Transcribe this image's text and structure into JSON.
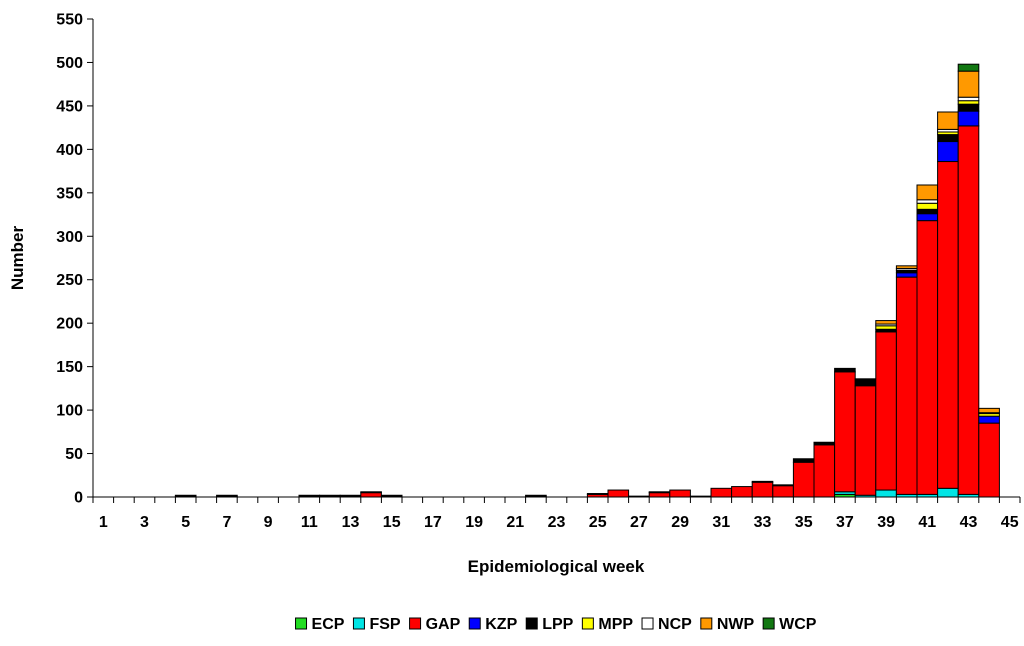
{
  "chart_data": {
    "type": "bar",
    "stacked": true,
    "xlabel": "Epidemiological week",
    "ylabel": "Number",
    "ylim": [
      0,
      550
    ],
    "yticks": [
      0,
      50,
      100,
      150,
      200,
      250,
      300,
      350,
      400,
      450,
      500,
      550
    ],
    "x_tick_labels": [
      "1",
      "3",
      "5",
      "7",
      "9",
      "11",
      "13",
      "15",
      "17",
      "19",
      "21",
      "23",
      "25",
      "27",
      "29",
      "31",
      "33",
      "35",
      "37",
      "39",
      "41",
      "43",
      "45"
    ],
    "grid": false,
    "legend_position": "bottom",
    "weeks": [
      1,
      2,
      3,
      4,
      5,
      6,
      7,
      8,
      9,
      10,
      11,
      12,
      13,
      14,
      15,
      16,
      17,
      18,
      19,
      20,
      21,
      22,
      23,
      24,
      25,
      26,
      27,
      28,
      29,
      30,
      31,
      32,
      33,
      34,
      35,
      36,
      37,
      38,
      39,
      40,
      41,
      42,
      43,
      44
    ],
    "series": [
      {
        "name": "ECP",
        "color": "#22dd22",
        "values": [
          0,
          0,
          0,
          0,
          0,
          0,
          0,
          0,
          0,
          0,
          0,
          0,
          0,
          0,
          0,
          0,
          0,
          0,
          0,
          0,
          0,
          0,
          0,
          0,
          0,
          0,
          0,
          0,
          0,
          0,
          0,
          0,
          0,
          0,
          0,
          0,
          3,
          0,
          0,
          0,
          0,
          0,
          0,
          0
        ]
      },
      {
        "name": "FSP",
        "color": "#00e5e5",
        "values": [
          0,
          0,
          0,
          0,
          0,
          0,
          0,
          0,
          0,
          0,
          0,
          0,
          0,
          0,
          0,
          0,
          0,
          0,
          0,
          0,
          0,
          0,
          0,
          0,
          0,
          0,
          0,
          0,
          0,
          0,
          0,
          0,
          0,
          0,
          0,
          0,
          3,
          2,
          8,
          3,
          3,
          10,
          3,
          0
        ]
      },
      {
        "name": "GAP",
        "color": "#ff0000",
        "values": [
          0,
          0,
          0,
          0,
          1,
          0,
          1,
          0,
          0,
          0,
          1,
          1,
          1,
          5,
          1,
          0,
          0,
          0,
          0,
          0,
          0,
          1,
          0,
          0,
          3,
          8,
          1,
          5,
          8,
          1,
          10,
          12,
          17,
          13,
          40,
          60,
          138,
          126,
          182,
          250,
          315,
          376,
          424,
          85
        ]
      },
      {
        "name": "KZP",
        "color": "#0000ff",
        "values": [
          0,
          0,
          0,
          0,
          0,
          0,
          0,
          0,
          0,
          0,
          0,
          0,
          0,
          0,
          0,
          0,
          0,
          0,
          0,
          0,
          0,
          0,
          0,
          0,
          0,
          0,
          0,
          0,
          0,
          0,
          0,
          0,
          0,
          0,
          0,
          0,
          0,
          0,
          0,
          5,
          8,
          23,
          17,
          8
        ]
      },
      {
        "name": "LPP",
        "color": "#000000",
        "values": [
          0,
          0,
          0,
          0,
          1,
          0,
          1,
          0,
          0,
          0,
          1,
          1,
          1,
          1,
          1,
          0,
          0,
          0,
          0,
          0,
          0,
          1,
          0,
          0,
          1,
          0,
          0,
          1,
          0,
          0,
          0,
          0,
          1,
          1,
          4,
          3,
          4,
          8,
          3,
          3,
          5,
          8,
          8,
          0
        ]
      },
      {
        "name": "MPP",
        "color": "#ffff00",
        "values": [
          0,
          0,
          0,
          0,
          0,
          0,
          0,
          0,
          0,
          0,
          0,
          0,
          0,
          0,
          0,
          0,
          0,
          0,
          0,
          0,
          0,
          0,
          0,
          0,
          0,
          0,
          0,
          0,
          0,
          0,
          0,
          0,
          0,
          0,
          0,
          0,
          0,
          0,
          4,
          0,
          7,
          3,
          4,
          3
        ]
      },
      {
        "name": "NCP",
        "color": "#ffffff",
        "values": [
          0,
          0,
          0,
          0,
          0,
          0,
          0,
          0,
          0,
          0,
          0,
          0,
          0,
          0,
          0,
          0,
          0,
          0,
          0,
          0,
          0,
          0,
          0,
          0,
          0,
          0,
          0,
          0,
          0,
          0,
          0,
          0,
          0,
          0,
          0,
          0,
          0,
          0,
          2,
          2,
          4,
          3,
          4,
          1
        ]
      },
      {
        "name": "NWP",
        "color": "#ff9900",
        "values": [
          0,
          0,
          0,
          0,
          0,
          0,
          0,
          0,
          0,
          0,
          0,
          0,
          0,
          0,
          0,
          0,
          0,
          0,
          0,
          0,
          0,
          0,
          0,
          0,
          0,
          0,
          0,
          0,
          0,
          0,
          0,
          0,
          0,
          0,
          0,
          0,
          0,
          0,
          4,
          3,
          17,
          20,
          30,
          5
        ]
      },
      {
        "name": "WCP",
        "color": "#117711",
        "values": [
          0,
          0,
          0,
          0,
          0,
          0,
          0,
          0,
          0,
          0,
          0,
          0,
          0,
          0,
          0,
          0,
          0,
          0,
          0,
          0,
          0,
          0,
          0,
          0,
          0,
          0,
          0,
          0,
          0,
          0,
          0,
          0,
          0,
          0,
          0,
          0,
          0,
          0,
          0,
          0,
          0,
          0,
          8,
          0
        ]
      }
    ]
  }
}
